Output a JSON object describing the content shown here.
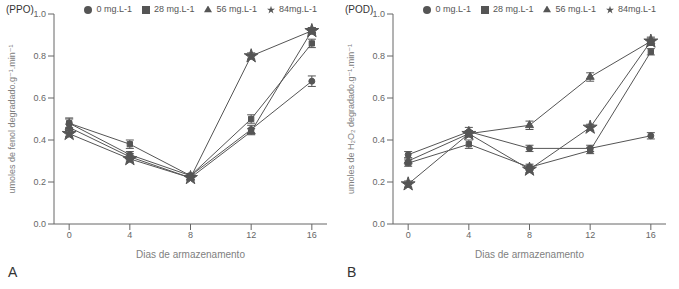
{
  "chart_data": [
    {
      "type": "line",
      "xlabel": "Dias de armazenamento",
      "ylabel": "umoles de fenol degradado.g⁻¹.min⁻¹",
      "annotations": [
        "(PPO)",
        "A"
      ],
      "x": [
        0,
        4,
        8,
        12,
        16
      ],
      "xlim": [
        -1,
        17
      ],
      "xticks": [
        0,
        4,
        8,
        12,
        16
      ],
      "ylim": [
        0,
        1
      ],
      "yticks": [
        {
          "value": 0,
          "label": "0.0"
        },
        0.2,
        0.4,
        0.6,
        0.8,
        {
          "value": 1,
          "label": "1.0"
        }
      ],
      "grid": false,
      "legend": "upper right",
      "series": [
        {
          "name": "0 mg.L-1",
          "color": "#555555",
          "marker": "circle",
          "values": [
            0.48,
            0.33,
            0.23,
            0.45,
            0.68
          ],
          "errors": [
            0.025,
            0.015,
            0.01,
            0.02,
            0.025
          ]
        },
        {
          "name": "28 mg.L-1",
          "color": "#555555",
          "marker": "square",
          "values": [
            0.48,
            0.38,
            0.23,
            0.5,
            0.86
          ],
          "errors": [
            0.02,
            0.02,
            0.01,
            0.02,
            0.02
          ]
        },
        {
          "name": "56 mg.L-1",
          "color": "#555555",
          "marker": "triangle",
          "values": [
            0.46,
            0.32,
            0.22,
            0.44,
            0.92
          ],
          "errors": [
            0.015,
            0.015,
            0.01,
            0.015,
            0.015
          ]
        },
        {
          "name": "84mg.L-1",
          "color": "#555555",
          "marker": "star",
          "values": [
            0.43,
            0.31,
            0.22,
            0.8,
            0.92
          ],
          "errors": [
            0.015,
            0.015,
            0.01,
            0.015,
            0.015
          ]
        }
      ]
    },
    {
      "type": "line",
      "xlabel": "Dias de armazenamento",
      "ylabel": "umoles de H₂O₂ degradado.g⁻¹.min⁻¹",
      "annotations": [
        "(POD)",
        "B"
      ],
      "x": [
        0,
        4,
        8,
        12,
        16
      ],
      "xlim": [
        -1,
        17
      ],
      "xticks": [
        0,
        4,
        8,
        12,
        16
      ],
      "ylim": [
        0,
        1
      ],
      "yticks": [
        {
          "value": 0,
          "label": "0.0"
        },
        0.2,
        0.4,
        0.6,
        0.8,
        {
          "value": 1,
          "label": "1.0"
        }
      ],
      "grid": false,
      "legend": "upper right",
      "series": [
        {
          "name": "0 mg.L-1",
          "color": "#555555",
          "marker": "circle",
          "values": [
            0.33,
            0.44,
            0.36,
            0.36,
            0.42
          ],
          "errors": [
            0.015,
            0.02,
            0.015,
            0.015,
            0.015
          ]
        },
        {
          "name": "28 mg.L-1",
          "color": "#555555",
          "marker": "square",
          "values": [
            0.29,
            0.38,
            0.27,
            0.35,
            0.82
          ],
          "errors": [
            0.015,
            0.02,
            0.015,
            0.015,
            0.015
          ]
        },
        {
          "name": "56 mg.L-1",
          "color": "#555555",
          "marker": "triangle",
          "values": [
            0.3,
            0.43,
            0.47,
            0.7,
            0.87
          ],
          "errors": [
            0.015,
            0.015,
            0.02,
            0.02,
            0.02
          ]
        },
        {
          "name": "84mg.L-1",
          "color": "#555555",
          "marker": "star",
          "values": [
            0.19,
            0.43,
            0.26,
            0.46,
            0.87
          ],
          "errors": [
            0.015,
            0.015,
            0.015,
            0.015,
            0.015
          ]
        }
      ]
    }
  ]
}
